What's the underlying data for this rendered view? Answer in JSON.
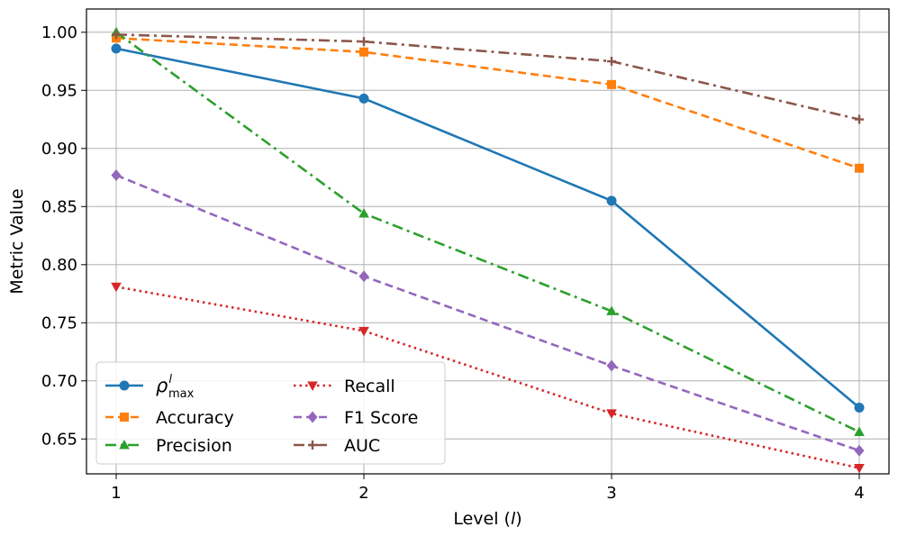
{
  "chart_data": {
    "type": "line",
    "title": "",
    "xlabel": "Level (l)",
    "xlabel_prefix": "Level (",
    "xlabel_var": "l",
    "xlabel_suffix": ")",
    "ylabel": "Metric Value",
    "x": [
      1,
      2,
      3,
      4
    ],
    "x_tick_labels": [
      "1",
      "2",
      "3",
      "4"
    ],
    "xlim": [
      0.88,
      4.12
    ],
    "ylim": [
      0.62,
      1.02
    ],
    "y_ticks": [
      0.65,
      0.7,
      0.75,
      0.8,
      0.85,
      0.9,
      0.95,
      1.0
    ],
    "y_tick_labels": [
      "0.65",
      "0.70",
      "0.75",
      "0.80",
      "0.85",
      "0.90",
      "0.95",
      "1.00"
    ],
    "grid": true,
    "legend_position": "lower-left",
    "series": [
      {
        "name": "ρ^l_max",
        "label_base": "ρ",
        "label_sup": "l",
        "label_sub": "max",
        "values": [
          0.986,
          0.943,
          0.855,
          0.677
        ],
        "color": "#1f77b4",
        "dash": "solid",
        "marker": "circle"
      },
      {
        "name": "Accuracy",
        "values": [
          0.995,
          0.983,
          0.955,
          0.883
        ],
        "color": "#ff7f0e",
        "dash": "dashed",
        "marker": "square"
      },
      {
        "name": "Precision",
        "values": [
          1.0,
          0.844,
          0.76,
          0.656
        ],
        "color": "#2ca02c",
        "dash": "dashdot",
        "marker": "triangle-up"
      },
      {
        "name": "Recall",
        "values": [
          0.781,
          0.743,
          0.672,
          0.625
        ],
        "color": "#d62728",
        "dash": "dotted",
        "marker": "triangle-down"
      },
      {
        "name": "F1 Score",
        "values": [
          0.877,
          0.79,
          0.713,
          0.64
        ],
        "color": "#9467bd",
        "dash": "dashed",
        "marker": "diamond"
      },
      {
        "name": "AUC",
        "values": [
          0.998,
          0.992,
          0.975,
          0.925
        ],
        "color": "#8c564b",
        "dash": "dashdot",
        "marker": "plus"
      }
    ]
  }
}
